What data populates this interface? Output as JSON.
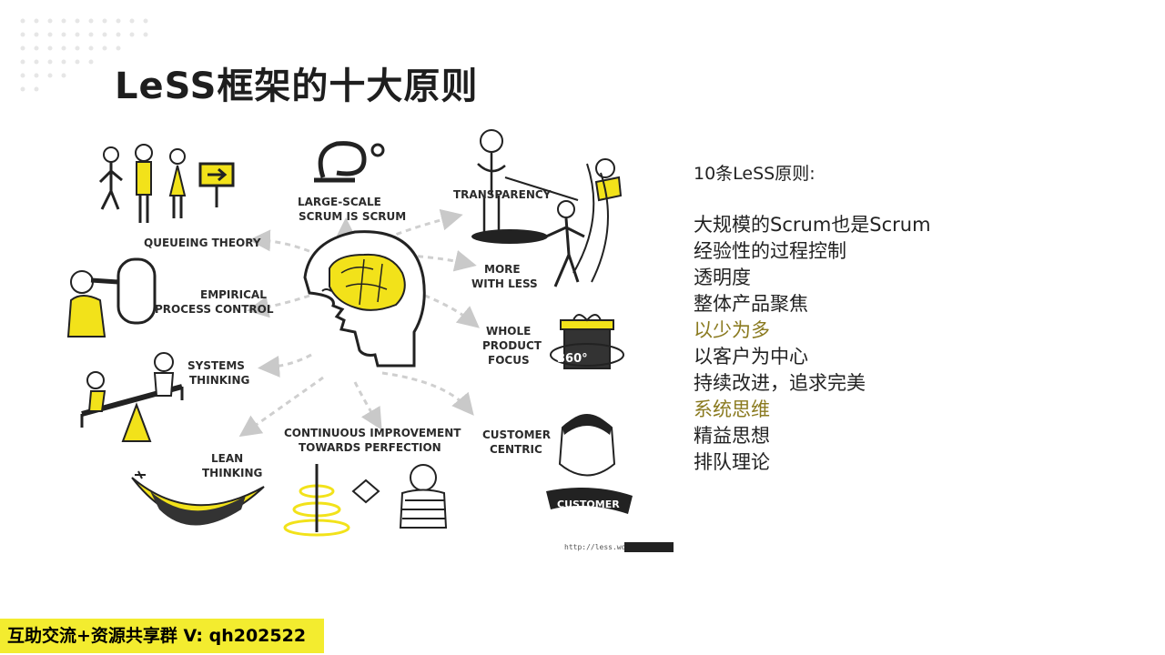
{
  "slide": {
    "title": "LeSS框架的十大原则"
  },
  "illustration": {
    "labels": {
      "queueing_theory": "QUEUEING THEORY",
      "large_scale_line1": "LARGE-SCALE",
      "large_scale_line2": "SCRUM IS SCRUM",
      "transparency": "TRANSPARENCY",
      "empirical_line1": "EMPIRICAL",
      "empirical_line2": "PROCESS CONTROL",
      "more_less_line1": "MORE",
      "more_less_line2": "WITH LESS",
      "whole_product_line1": "WHOLE",
      "whole_product_line2": "PRODUCT",
      "whole_product_line3": "FOCUS",
      "systems_line1": "SYSTEMS",
      "systems_line2": "THINKING",
      "lean_line1": "LEAN",
      "lean_line2": "THINKING",
      "continuous_line1": "CONTINUOUS IMPROVEMENT",
      "continuous_line2": "TOWARDS PERFECTION",
      "customer_line1": "CUSTOMER",
      "customer_line2": "CENTRIC",
      "gift_badge": "360°",
      "customer_banner": "CUSTOMER"
    },
    "source_url": "http://less.works",
    "accent_color": "#f2e21a"
  },
  "principles": {
    "heading": "10条LeSS原则:",
    "items": [
      {
        "text": "大规模的Scrum也是Scrum",
        "highlight": false
      },
      {
        "text": "经验性的过程控制",
        "highlight": false
      },
      {
        "text": "透明度",
        "highlight": false
      },
      {
        "text": "整体产品聚焦",
        "highlight": false
      },
      {
        "text": "以少为多",
        "highlight": true
      },
      {
        "text": "以客户为中心",
        "highlight": false
      },
      {
        "text": "持续改进，追求完美",
        "highlight": false
      },
      {
        "text": "系统思维",
        "highlight": true
      },
      {
        "text": "精益思想",
        "highlight": false
      },
      {
        "text": "排队理论",
        "highlight": false
      }
    ]
  },
  "footer": {
    "text": "互助交流+资源共享群 V: qh202522"
  }
}
